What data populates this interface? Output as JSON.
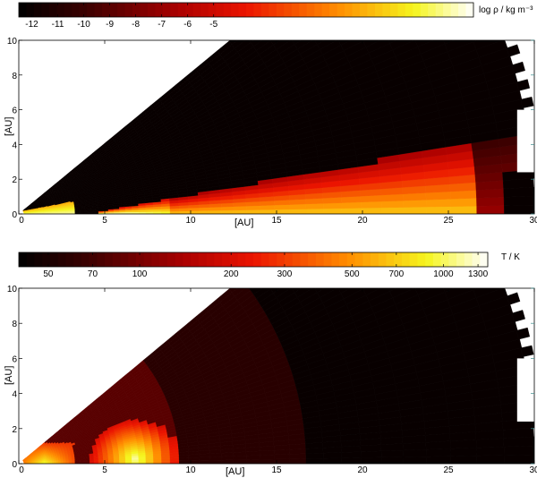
{
  "chart_data": [
    {
      "type": "heatmap",
      "colorbar": {
        "label": "log ρ / kg m⁻³",
        "ticks": [
          -12,
          -11,
          -10,
          -9,
          -8,
          -7,
          -6,
          -5
        ],
        "tick_labels": [
          "-12",
          "-11",
          "-10",
          "-9",
          "-8",
          "-7",
          "-6",
          "-5"
        ],
        "range": [
          -12.5,
          5.0
        ]
      },
      "xlabel": "[AU]",
      "ylabel": "[AU]",
      "xlim": [
        0,
        30
      ],
      "ylim": [
        0,
        10
      ],
      "xticks": [
        0,
        5,
        10,
        15,
        20,
        25,
        30
      ],
      "xtick_labels": [
        "0",
        "5",
        "10",
        "15",
        "20",
        "25",
        "30"
      ],
      "yticks": [
        0,
        2,
        4,
        6,
        8,
        10
      ],
      "ytick_labels": [
        "0",
        "2",
        "4",
        "6",
        "8",
        "10"
      ]
    },
    {
      "type": "heatmap",
      "colorbar": {
        "label": "T / K",
        "ticks": [
          50,
          70,
          100,
          200,
          300,
          500,
          700,
          1000,
          1300
        ],
        "tick_labels": [
          "50",
          "70",
          "100",
          "200",
          "300",
          "500",
          "700",
          "1000",
          "1300"
        ],
        "range": [
          40,
          1400
        ],
        "scale": "log"
      },
      "xlabel": "[AU]",
      "ylabel": "[AU]",
      "xlim": [
        0,
        30
      ],
      "ylim": [
        0,
        10
      ],
      "xticks": [
        0,
        5,
        10,
        15,
        20,
        25,
        30
      ],
      "xtick_labels": [
        "0",
        "5",
        "10",
        "15",
        "20",
        "25",
        "30"
      ],
      "yticks": [
        0,
        2,
        4,
        6,
        8,
        10
      ],
      "ytick_labels": [
        "0",
        "2",
        "4",
        "6",
        "8",
        "10"
      ]
    }
  ]
}
